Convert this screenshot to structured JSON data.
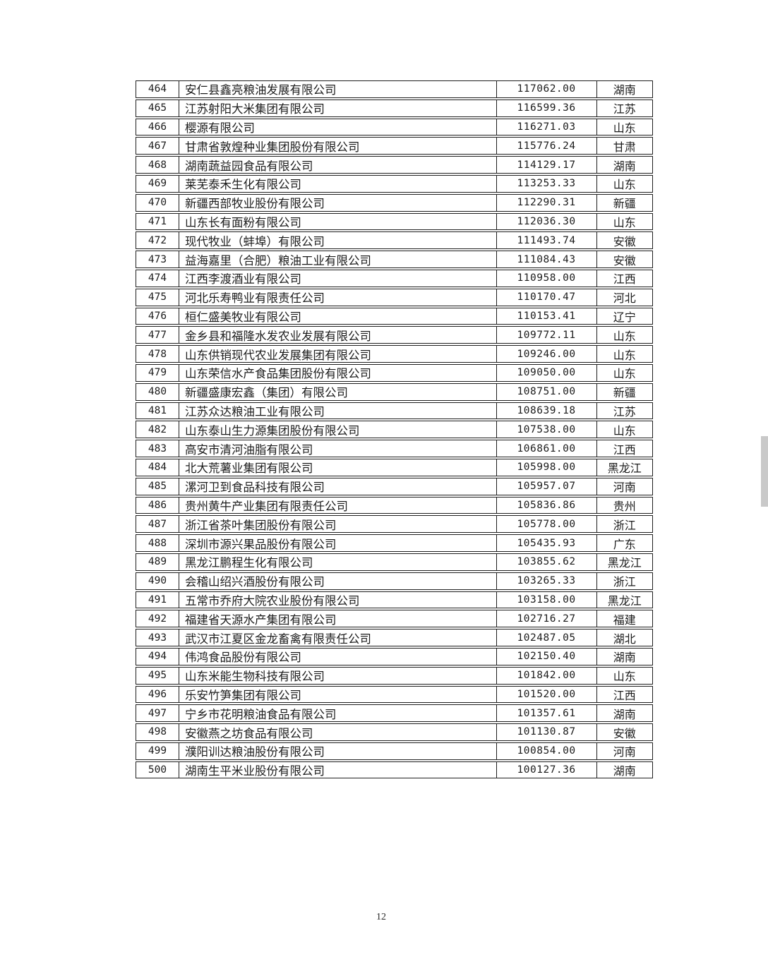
{
  "page": {
    "number": "12"
  },
  "colors": {
    "background": "#ffffff",
    "table_border": "#1e1e1e",
    "text": "#1c1c1c",
    "scrollbar_thumb": "#c9c9c9"
  },
  "table": {
    "columns": [
      "rank",
      "company",
      "value",
      "province"
    ],
    "rows": [
      {
        "rank": "464",
        "company": "安仁县鑫亮粮油发展有限公司",
        "value": "117062.00",
        "province": "湖南"
      },
      {
        "rank": "465",
        "company": "江苏射阳大米集团有限公司",
        "value": "116599.36",
        "province": "江苏"
      },
      {
        "rank": "466",
        "company": "樱源有限公司",
        "value": "116271.03",
        "province": "山东"
      },
      {
        "rank": "467",
        "company": "甘肃省敦煌种业集团股份有限公司",
        "value": "115776.24",
        "province": "甘肃"
      },
      {
        "rank": "468",
        "company": "湖南蔬益园食品有限公司",
        "value": "114129.17",
        "province": "湖南"
      },
      {
        "rank": "469",
        "company": "莱芜泰禾生化有限公司",
        "value": "113253.33",
        "province": "山东"
      },
      {
        "rank": "470",
        "company": "新疆西部牧业股份有限公司",
        "value": "112290.31",
        "province": "新疆"
      },
      {
        "rank": "471",
        "company": "山东长有面粉有限公司",
        "value": "112036.30",
        "province": "山东"
      },
      {
        "rank": "472",
        "company": "现代牧业（蚌埠）有限公司",
        "value": "111493.74",
        "province": "安徽"
      },
      {
        "rank": "473",
        "company": "益海嘉里（合肥）粮油工业有限公司",
        "value": "111084.43",
        "province": "安徽"
      },
      {
        "rank": "474",
        "company": "江西李渡酒业有限公司",
        "value": "110958.00",
        "province": "江西"
      },
      {
        "rank": "475",
        "company": "河北乐寿鸭业有限责任公司",
        "value": "110170.47",
        "province": "河北"
      },
      {
        "rank": "476",
        "company": "桓仁盛美牧业有限公司",
        "value": "110153.41",
        "province": "辽宁"
      },
      {
        "rank": "477",
        "company": "金乡县和福隆水发农业发展有限公司",
        "value": "109772.11",
        "province": "山东"
      },
      {
        "rank": "478",
        "company": "山东供销现代农业发展集团有限公司",
        "value": "109246.00",
        "province": "山东"
      },
      {
        "rank": "479",
        "company": "山东荣信水产食品集团股份有限公司",
        "value": "109050.00",
        "province": "山东"
      },
      {
        "rank": "480",
        "company": "新疆盛康宏鑫（集团）有限公司",
        "value": "108751.00",
        "province": "新疆"
      },
      {
        "rank": "481",
        "company": "江苏众达粮油工业有限公司",
        "value": "108639.18",
        "province": "江苏"
      },
      {
        "rank": "482",
        "company": "山东泰山生力源集团股份有限公司",
        "value": "107538.00",
        "province": "山东"
      },
      {
        "rank": "483",
        "company": "高安市清河油脂有限公司",
        "value": "106861.00",
        "province": "江西"
      },
      {
        "rank": "484",
        "company": "北大荒薯业集团有限公司",
        "value": "105998.00",
        "province": "黑龙江"
      },
      {
        "rank": "485",
        "company": "漯河卫到食品科技有限公司",
        "value": "105957.07",
        "province": "河南"
      },
      {
        "rank": "486",
        "company": "贵州黄牛产业集团有限责任公司",
        "value": "105836.86",
        "province": "贵州"
      },
      {
        "rank": "487",
        "company": "浙江省茶叶集团股份有限公司",
        "value": "105778.00",
        "province": "浙江"
      },
      {
        "rank": "488",
        "company": "深圳市源兴果品股份有限公司",
        "value": "105435.93",
        "province": "广东"
      },
      {
        "rank": "489",
        "company": "黑龙江鹏程生化有限公司",
        "value": "103855.62",
        "province": "黑龙江"
      },
      {
        "rank": "490",
        "company": "会稽山绍兴酒股份有限公司",
        "value": "103265.33",
        "province": "浙江"
      },
      {
        "rank": "491",
        "company": "五常市乔府大院农业股份有限公司",
        "value": "103158.00",
        "province": "黑龙江"
      },
      {
        "rank": "492",
        "company": "福建省天源水产集团有限公司",
        "value": "102716.27",
        "province": "福建"
      },
      {
        "rank": "493",
        "company": "武汉市江夏区金龙畜禽有限责任公司",
        "value": "102487.05",
        "province": "湖北"
      },
      {
        "rank": "494",
        "company": "伟鸿食品股份有限公司",
        "value": "102150.40",
        "province": "湖南"
      },
      {
        "rank": "495",
        "company": "山东米能生物科技有限公司",
        "value": "101842.00",
        "province": "山东"
      },
      {
        "rank": "496",
        "company": "乐安竹笋集团有限公司",
        "value": "101520.00",
        "province": "江西"
      },
      {
        "rank": "497",
        "company": "宁乡市花明粮油食品有限公司",
        "value": "101357.61",
        "province": "湖南"
      },
      {
        "rank": "498",
        "company": "安徽燕之坊食品有限公司",
        "value": "101130.87",
        "province": "安徽"
      },
      {
        "rank": "499",
        "company": "濮阳训达粮油股份有限公司",
        "value": "100854.00",
        "province": "河南"
      },
      {
        "rank": "500",
        "company": "湖南生平米业股份有限公司",
        "value": "100127.36",
        "province": "湖南"
      }
    ]
  }
}
